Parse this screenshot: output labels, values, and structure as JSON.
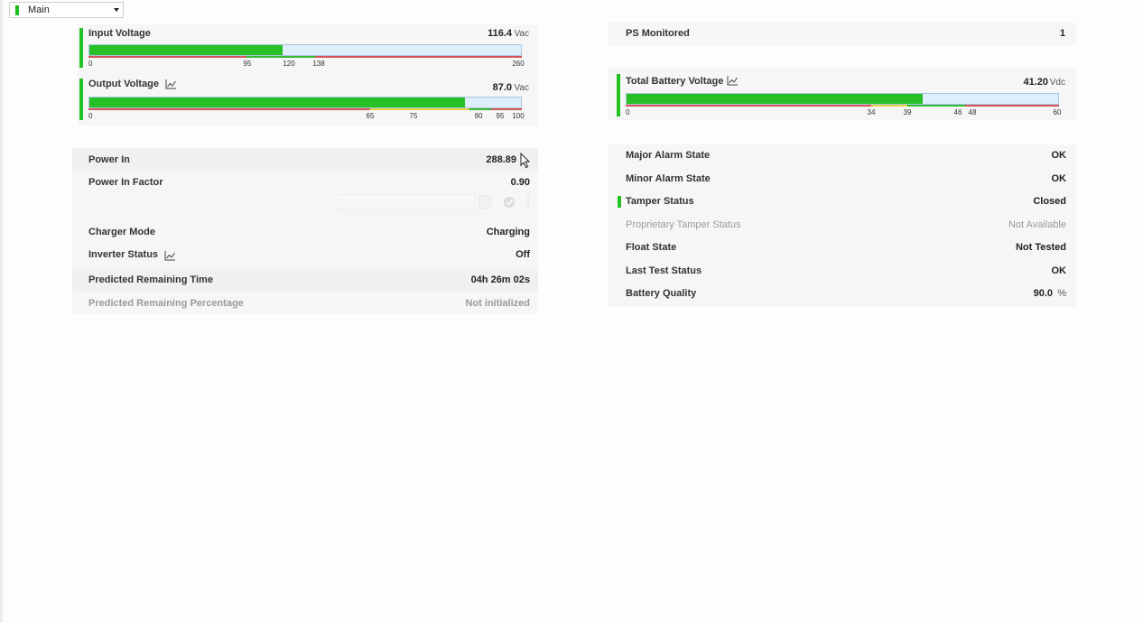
{
  "view_selector": {
    "selected": "Main"
  },
  "colors": {
    "ok_green": "#22c322",
    "gauge_fill": "#27c127",
    "gauge_track": "#deeefa",
    "alarm_red": "#d55555",
    "warn_yellow": "#e4d23e"
  },
  "gauges": {
    "input_voltage": {
      "title": "Input Voltage",
      "value": "116.4",
      "unit": "Vac",
      "min": 0,
      "max": 260,
      "fill_value": 116.4,
      "ticks": [
        "0",
        "95",
        "120",
        "138",
        "260"
      ]
    },
    "output_voltage": {
      "title": "Output Voltage",
      "value": "87.0",
      "unit": "Vac",
      "min": 0,
      "max": 100,
      "fill_value": 87.0,
      "ticks": [
        "0",
        "65",
        "75",
        "90",
        "95",
        "100"
      ]
    },
    "total_battery_voltage": {
      "title": "Total Battery Voltage",
      "value": "41.20",
      "unit": "Vdc",
      "min": 0,
      "max": 60,
      "fill_value": 41.2,
      "ticks": [
        "0",
        "34",
        "39",
        "46",
        "48",
        "60"
      ]
    }
  },
  "left_rows": {
    "power_in": {
      "label": "Power In",
      "value": "288.89"
    },
    "power_in_factor": {
      "label": "Power In Factor",
      "value": "0.90"
    },
    "charger_mode": {
      "label": "Charger Mode",
      "value": "Charging"
    },
    "inverter_status": {
      "label": "Inverter Status",
      "value": "Off"
    },
    "predicted_remaining_time": {
      "label": "Predicted Remaining Time",
      "value": "04h 26m 02s"
    },
    "predicted_remaining_percentage": {
      "label": "Predicted Remaining Percentage",
      "value": "Not initialized"
    }
  },
  "ps_monitored": {
    "label": "PS Monitored",
    "value": "1"
  },
  "right_rows": {
    "major_alarm_state": {
      "label": "Major Alarm State",
      "value": "OK"
    },
    "minor_alarm_state": {
      "label": "Minor Alarm State",
      "value": "OK"
    },
    "tamper_status": {
      "label": "Tamper Status",
      "value": "Closed"
    },
    "proprietary_tamper_status": {
      "label": "Proprietary Tamper Status",
      "value": "Not Available"
    },
    "float_state": {
      "label": "Float State",
      "value": "Not Tested"
    },
    "last_test_status": {
      "label": "Last Test Status",
      "value": "OK"
    },
    "battery_quality": {
      "label": "Battery Quality",
      "value": "90.0",
      "unit": "%"
    }
  }
}
